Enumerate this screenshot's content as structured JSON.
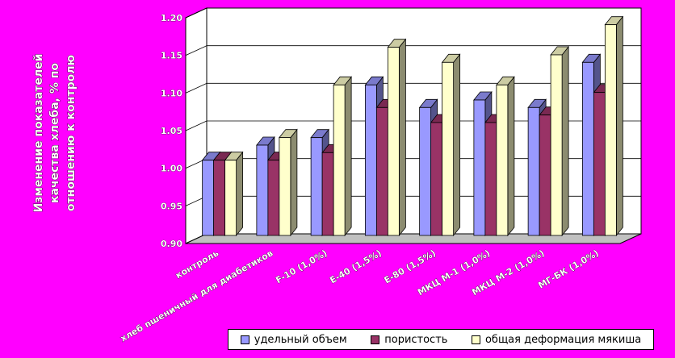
{
  "chart_data": {
    "type": "bar",
    "title": "",
    "ylabel": "Изменение показателей качества хлеба, % по отношению к контролю",
    "xlabel": "",
    "ylim": [
      0.9,
      1.2
    ],
    "yticks": [
      "0.90",
      "0.95",
      "1.00",
      "1.05",
      "1.10",
      "1.15",
      "1.20"
    ],
    "categories": [
      "контроль",
      "хлеб пшеничный для диабетиков",
      "F-10 (1,0%)",
      "E-40 (1,5%)",
      "E-80 (1,5%)",
      "МКЦ М-1 (1,0%)",
      "МКЦ М-2 (1,0%)",
      "МГ-БК (1,0%)"
    ],
    "series": [
      {
        "name": "удельный объем",
        "color": "#9999FF",
        "values": [
          1.0,
          1.02,
          1.03,
          1.1,
          1.07,
          1.08,
          1.07,
          1.13
        ]
      },
      {
        "name": "пористость",
        "color": "#993366",
        "values": [
          1.0,
          1.0,
          1.01,
          1.07,
          1.05,
          1.05,
          1.06,
          1.09
        ]
      },
      {
        "name": "общая деформация мякиша",
        "color": "#FFFFCC",
        "values": [
          1.0,
          1.03,
          1.1,
          1.15,
          1.13,
          1.1,
          1.14,
          1.18
        ]
      }
    ],
    "grid": true,
    "legend_position": "bottom"
  }
}
